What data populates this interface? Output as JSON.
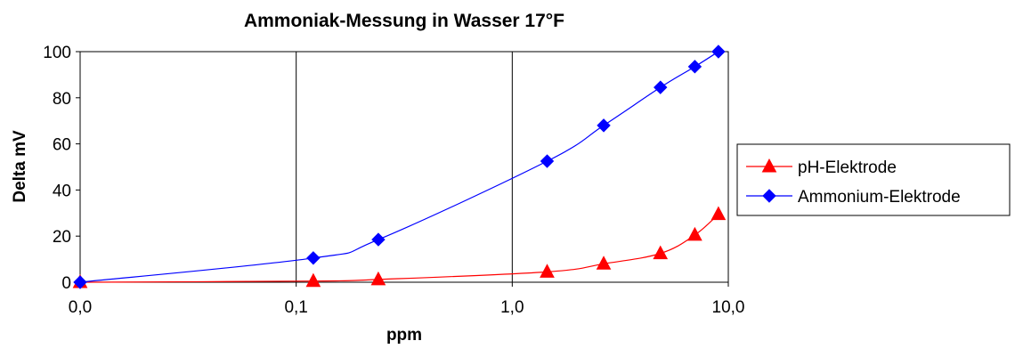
{
  "chart_data": {
    "type": "line",
    "title": "Ammoniak-Messung in Wasser 17°F",
    "xlabel": "ppm",
    "ylabel": "Delta mV",
    "x_scale": "log",
    "x_ticks": [
      "0,0",
      "0,1",
      "1,0",
      "10,0"
    ],
    "x_tick_values": [
      0.01,
      0.1,
      1,
      10
    ],
    "xlim": [
      0.01,
      10
    ],
    "ylim": [
      0,
      100
    ],
    "y_ticks": [
      0,
      20,
      40,
      60,
      80,
      100
    ],
    "grid": "vertical",
    "legend_position": "right",
    "series": [
      {
        "name": "pH-Elektrode",
        "color": "#ff0000",
        "marker": "triangle",
        "x": [
          0.01,
          0.12,
          0.24,
          1.45,
          2.65,
          4.85,
          7.0,
          9.0
        ],
        "y": [
          0,
          0.5,
          1.2,
          4.5,
          8.0,
          12.5,
          20.5,
          29.5
        ]
      },
      {
        "name": "Ammonium-Elektrode",
        "color": "#0000ff",
        "marker": "diamond",
        "x": [
          0.01,
          0.12,
          0.24,
          1.45,
          2.65,
          4.85,
          7.0,
          9.0
        ],
        "y": [
          0,
          10.5,
          18.5,
          52.5,
          68.0,
          84.5,
          93.5,
          100
        ]
      }
    ]
  }
}
